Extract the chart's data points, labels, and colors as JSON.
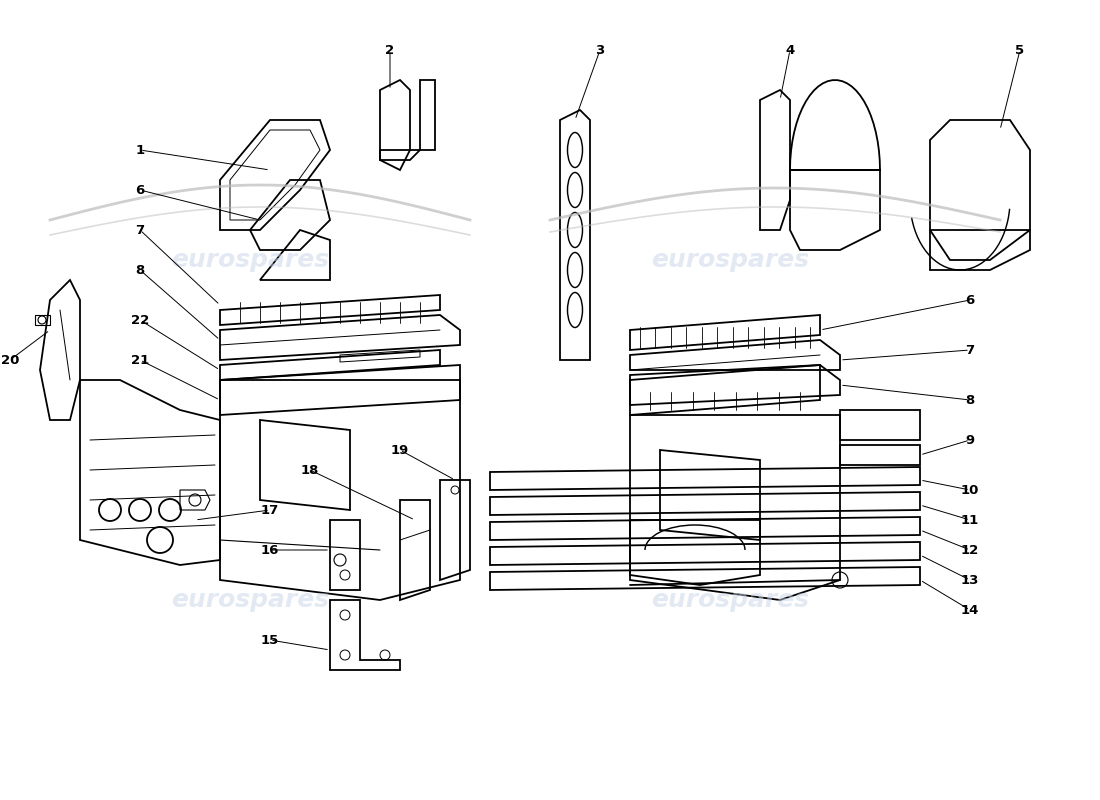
{
  "background_color": "#ffffff",
  "watermark_text": "eurospares",
  "watermark_color": "#c8d4e8",
  "line_color": "#000000",
  "lw": 1.3,
  "swoosh_color": "#cccccc",
  "label_fontsize": 9.5
}
